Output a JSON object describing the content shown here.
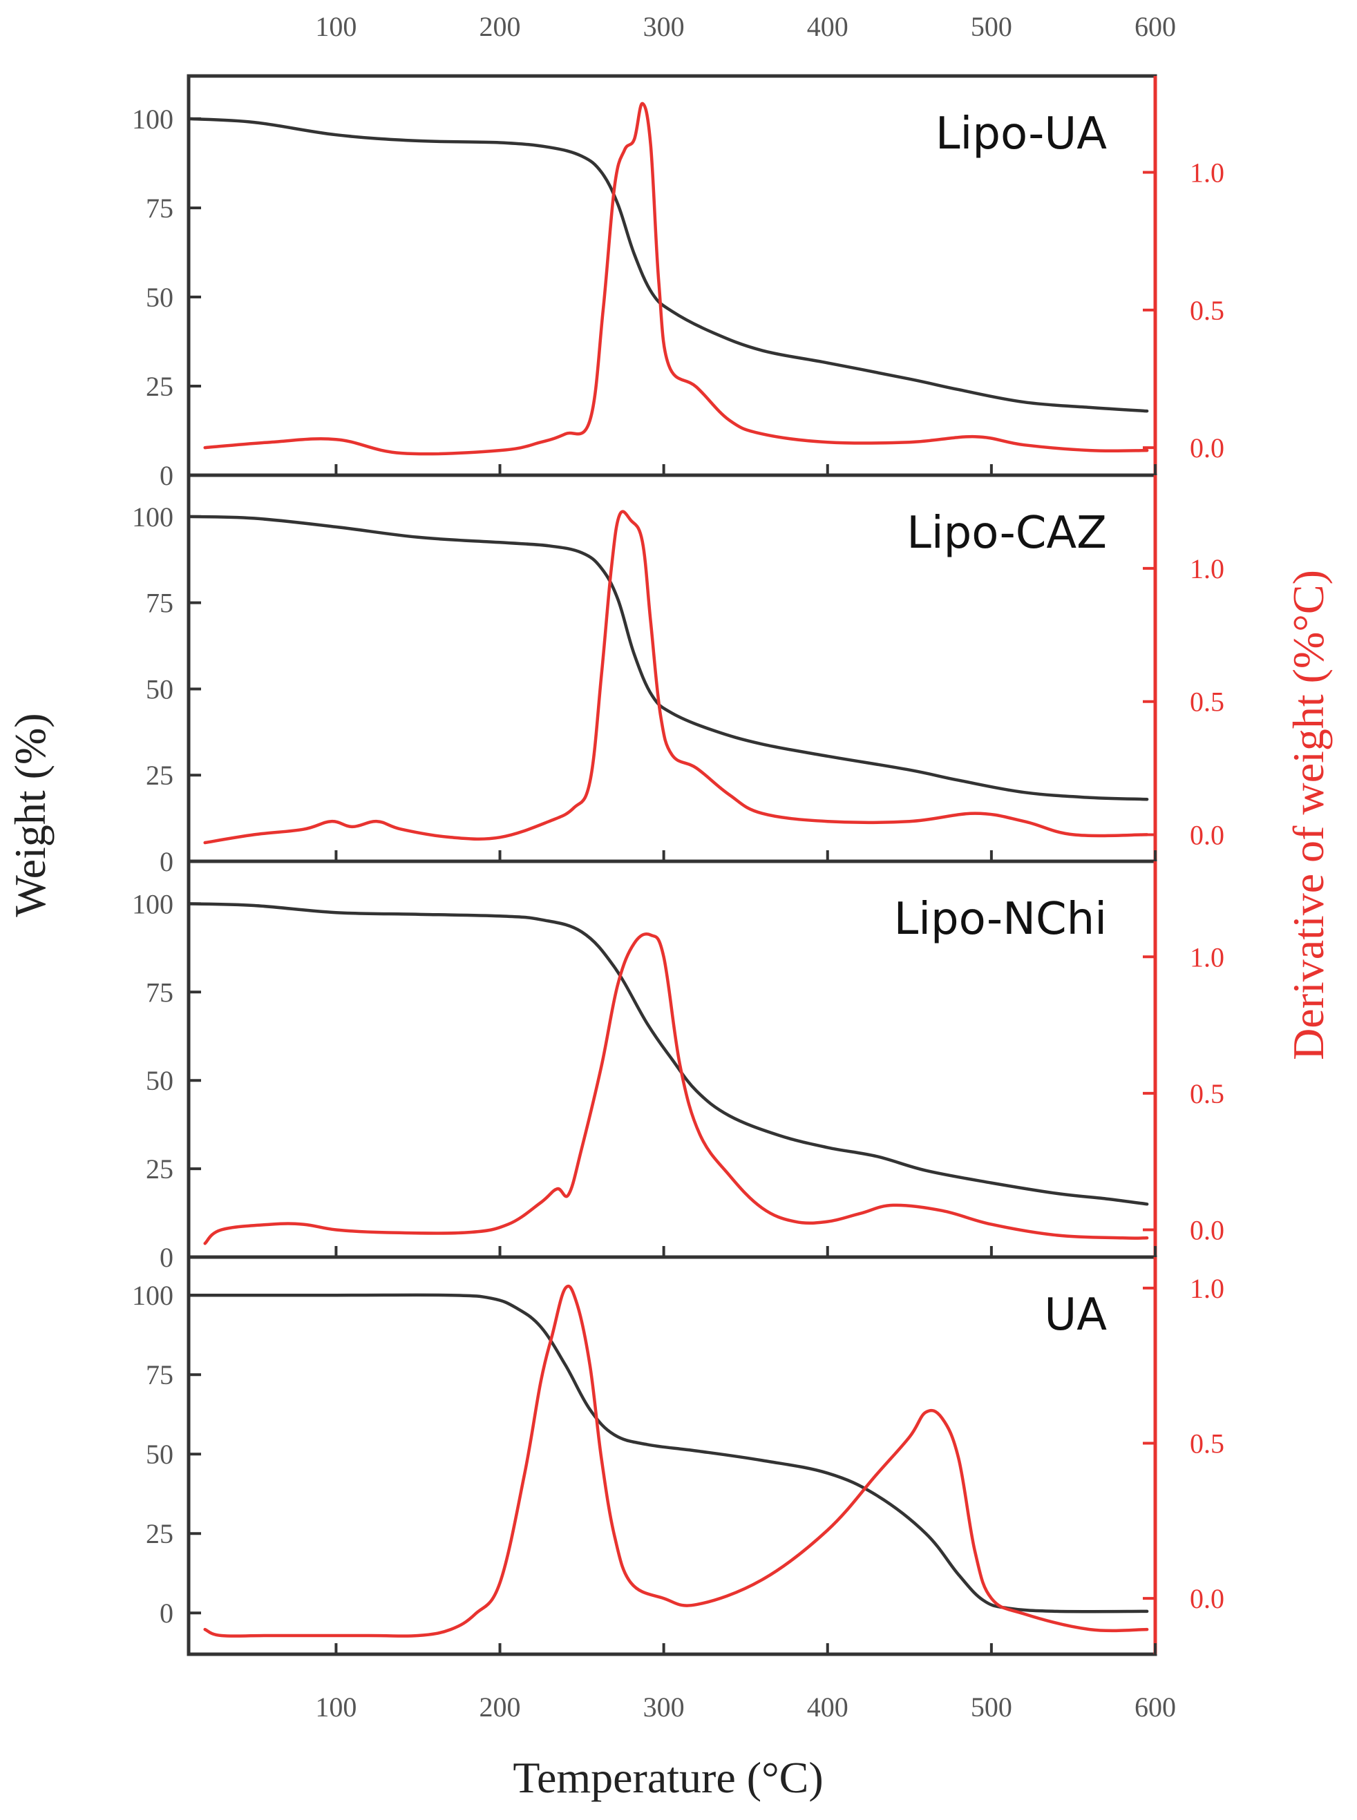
{
  "chart_data": {
    "type": "line",
    "xlabel": "Temperature (°C)",
    "ylabel_left": "Weight (%)",
    "ylabel_right": "Derivative of weight (%°C)",
    "xlim": [
      10,
      600
    ],
    "x_ticks": [
      100,
      200,
      300,
      400,
      500,
      600
    ],
    "colors": {
      "weight": "#333333",
      "derivative": "#e8332f"
    },
    "panels": [
      {
        "label": "Lipo-UA",
        "ylim_left": [
          0,
          112
        ],
        "y_ticks_left": [
          0,
          25,
          50,
          75,
          100
        ],
        "ylim_right": [
          -0.1,
          1.35
        ],
        "y_ticks_right": [
          "0.0",
          "0.5",
          "1.0"
        ],
        "series": [
          {
            "name": "Weight",
            "axis": "left",
            "points": [
              [
                10,
                100
              ],
              [
                50,
                99
              ],
              [
                100,
                95.5
              ],
              [
                150,
                93.8
              ],
              [
                200,
                93.3
              ],
              [
                230,
                92
              ],
              [
                250,
                89.5
              ],
              [
                262,
                85
              ],
              [
                272,
                76
              ],
              [
                282,
                62
              ],
              [
                293,
                51
              ],
              [
                305,
                46
              ],
              [
                330,
                40
              ],
              [
                360,
                35
              ],
              [
                400,
                31.5
              ],
              [
                450,
                27
              ],
              [
                480,
                24
              ],
              [
                520,
                20.5
              ],
              [
                560,
                19
              ],
              [
                595,
                18
              ]
            ]
          },
          {
            "name": "Derivative",
            "axis": "right",
            "points": [
              [
                20,
                0
              ],
              [
                60,
                0.02
              ],
              [
                100,
                0.03
              ],
              [
                140,
                -0.02
              ],
              [
                200,
                -0.01
              ],
              [
                225,
                0.02
              ],
              [
                240,
                0.05
              ],
              [
                255,
                0.1
              ],
              [
                263,
                0.5
              ],
              [
                270,
                0.95
              ],
              [
                276,
                1.08
              ],
              [
                282,
                1.12
              ],
              [
                287,
                1.25
              ],
              [
                292,
                1.1
              ],
              [
                297,
                0.6
              ],
              [
                303,
                0.3
              ],
              [
                320,
                0.22
              ],
              [
                340,
                0.1
              ],
              [
                360,
                0.05
              ],
              [
                400,
                0.02
              ],
              [
                450,
                0.02
              ],
              [
                490,
                0.04
              ],
              [
                520,
                0.01
              ],
              [
                560,
                -0.01
              ],
              [
                595,
                -0.01
              ]
            ]
          }
        ]
      },
      {
        "label": "Lipo-CAZ",
        "ylim_left": [
          0,
          112
        ],
        "y_ticks_left": [
          0,
          25,
          50,
          75,
          100
        ],
        "ylim_right": [
          -0.1,
          1.35
        ],
        "y_ticks_right": [
          "0.0",
          "0.5",
          "1.0"
        ],
        "series": [
          {
            "name": "Weight",
            "axis": "left",
            "points": [
              [
                10,
                100
              ],
              [
                50,
                99.5
              ],
              [
                100,
                97
              ],
              [
                150,
                94
              ],
              [
                200,
                92.5
              ],
              [
                230,
                91.5
              ],
              [
                250,
                89.5
              ],
              [
                262,
                85
              ],
              [
                272,
                76
              ],
              [
                282,
                60
              ],
              [
                293,
                48
              ],
              [
                305,
                43
              ],
              [
                330,
                38
              ],
              [
                360,
                34
              ],
              [
                400,
                30.5
              ],
              [
                450,
                26.5
              ],
              [
                480,
                23.5
              ],
              [
                520,
                20
              ],
              [
                560,
                18.5
              ],
              [
                595,
                18
              ]
            ]
          },
          {
            "name": "Derivative",
            "axis": "right",
            "points": [
              [
                20,
                -0.03
              ],
              [
                50,
                0.0
              ],
              [
                80,
                0.02
              ],
              [
                97,
                0.05
              ],
              [
                110,
                0.03
              ],
              [
                125,
                0.05
              ],
              [
                140,
                0.02
              ],
              [
                170,
                -0.01
              ],
              [
                200,
                -0.01
              ],
              [
                230,
                0.05
              ],
              [
                245,
                0.1
              ],
              [
                255,
                0.2
              ],
              [
                262,
                0.6
              ],
              [
                268,
                1.0
              ],
              [
                273,
                1.2
              ],
              [
                280,
                1.18
              ],
              [
                287,
                1.1
              ],
              [
                292,
                0.8
              ],
              [
                298,
                0.45
              ],
              [
                305,
                0.3
              ],
              [
                320,
                0.25
              ],
              [
                340,
                0.15
              ],
              [
                360,
                0.08
              ],
              [
                400,
                0.05
              ],
              [
                450,
                0.05
              ],
              [
                490,
                0.08
              ],
              [
                520,
                0.05
              ],
              [
                550,
                0.0
              ],
              [
                595,
                0.0
              ]
            ]
          }
        ]
      },
      {
        "label": "Lipo-NChi",
        "ylim_left": [
          0,
          112
        ],
        "y_ticks_left": [
          0,
          25,
          50,
          75,
          100
        ],
        "ylim_right": [
          -0.1,
          1.35
        ],
        "y_ticks_right": [
          "0.0",
          "0.5",
          "1.0"
        ],
        "series": [
          {
            "name": "Weight",
            "axis": "left",
            "points": [
              [
                10,
                100
              ],
              [
                50,
                99.5
              ],
              [
                100,
                97.5
              ],
              [
                150,
                97
              ],
              [
                200,
                96.5
              ],
              [
                225,
                95.5
              ],
              [
                250,
                92
              ],
              [
                270,
                82
              ],
              [
                290,
                66
              ],
              [
                305,
                56
              ],
              [
                320,
                47
              ],
              [
                340,
                40
              ],
              [
                370,
                34.5
              ],
              [
                400,
                31
              ],
              [
                430,
                28.5
              ],
              [
                460,
                24.5
              ],
              [
                500,
                21
              ],
              [
                540,
                18
              ],
              [
                570,
                16.5
              ],
              [
                595,
                15
              ]
            ]
          },
          {
            "name": "Derivative",
            "axis": "right",
            "points": [
              [
                20,
                -0.05
              ],
              [
                30,
                0.0
              ],
              [
                60,
                0.02
              ],
              [
                80,
                0.02
              ],
              [
                100,
                0.0
              ],
              [
                130,
                -0.01
              ],
              [
                180,
                -0.01
              ],
              [
                205,
                0.02
              ],
              [
                225,
                0.1
              ],
              [
                235,
                0.15
              ],
              [
                242,
                0.13
              ],
              [
                250,
                0.3
              ],
              [
                262,
                0.6
              ],
              [
                272,
                0.9
              ],
              [
                282,
                1.05
              ],
              [
                292,
                1.08
              ],
              [
                300,
                1.0
              ],
              [
                310,
                0.6
              ],
              [
                322,
                0.35
              ],
              [
                340,
                0.2
              ],
              [
                360,
                0.08
              ],
              [
                380,
                0.03
              ],
              [
                400,
                0.03
              ],
              [
                420,
                0.06
              ],
              [
                440,
                0.09
              ],
              [
                470,
                0.07
              ],
              [
                500,
                0.02
              ],
              [
                540,
                -0.02
              ],
              [
                580,
                -0.03
              ],
              [
                595,
                -0.03
              ]
            ]
          }
        ]
      },
      {
        "label": "UA",
        "ylim_left": [
          -13,
          112
        ],
        "y_ticks_left": [
          0,
          25,
          50,
          75,
          100
        ],
        "ylim_right": [
          -0.18,
          1.1
        ],
        "y_ticks_right": [
          "0.0",
          "0.5",
          "1.0"
        ],
        "series": [
          {
            "name": "Weight",
            "axis": "left",
            "points": [
              [
                10,
                100
              ],
              [
                100,
                100
              ],
              [
                170,
                100
              ],
              [
                195,
                99
              ],
              [
                210,
                96
              ],
              [
                225,
                90
              ],
              [
                240,
                78
              ],
              [
                255,
                64
              ],
              [
                270,
                56
              ],
              [
                290,
                53
              ],
              [
                320,
                51
              ],
              [
                360,
                48
              ],
              [
                400,
                44
              ],
              [
                430,
                37
              ],
              [
                460,
                25
              ],
              [
                480,
                12
              ],
              [
                495,
                4
              ],
              [
                510,
                1.5
              ],
              [
                540,
                0.5
              ],
              [
                595,
                0.5
              ]
            ]
          },
          {
            "name": "Derivative",
            "axis": "right",
            "points": [
              [
                20,
                -0.1
              ],
              [
                30,
                -0.12
              ],
              [
                60,
                -0.12
              ],
              [
                120,
                -0.12
              ],
              [
                150,
                -0.12
              ],
              [
                170,
                -0.1
              ],
              [
                185,
                -0.05
              ],
              [
                200,
                0.05
              ],
              [
                215,
                0.4
              ],
              [
                225,
                0.7
              ],
              [
                232,
                0.85
              ],
              [
                240,
                1.0
              ],
              [
                247,
                0.95
              ],
              [
                255,
                0.75
              ],
              [
                262,
                0.45
              ],
              [
                270,
                0.2
              ],
              [
                280,
                0.05
              ],
              [
                300,
                0.0
              ],
              [
                320,
                -0.02
              ],
              [
                360,
                0.06
              ],
              [
                400,
                0.22
              ],
              [
                430,
                0.4
              ],
              [
                450,
                0.52
              ],
              [
                460,
                0.6
              ],
              [
                470,
                0.58
              ],
              [
                480,
                0.45
              ],
              [
                490,
                0.15
              ],
              [
                500,
                0.0
              ],
              [
                520,
                -0.05
              ],
              [
                560,
                -0.1
              ],
              [
                595,
                -0.1
              ]
            ]
          }
        ]
      }
    ]
  }
}
